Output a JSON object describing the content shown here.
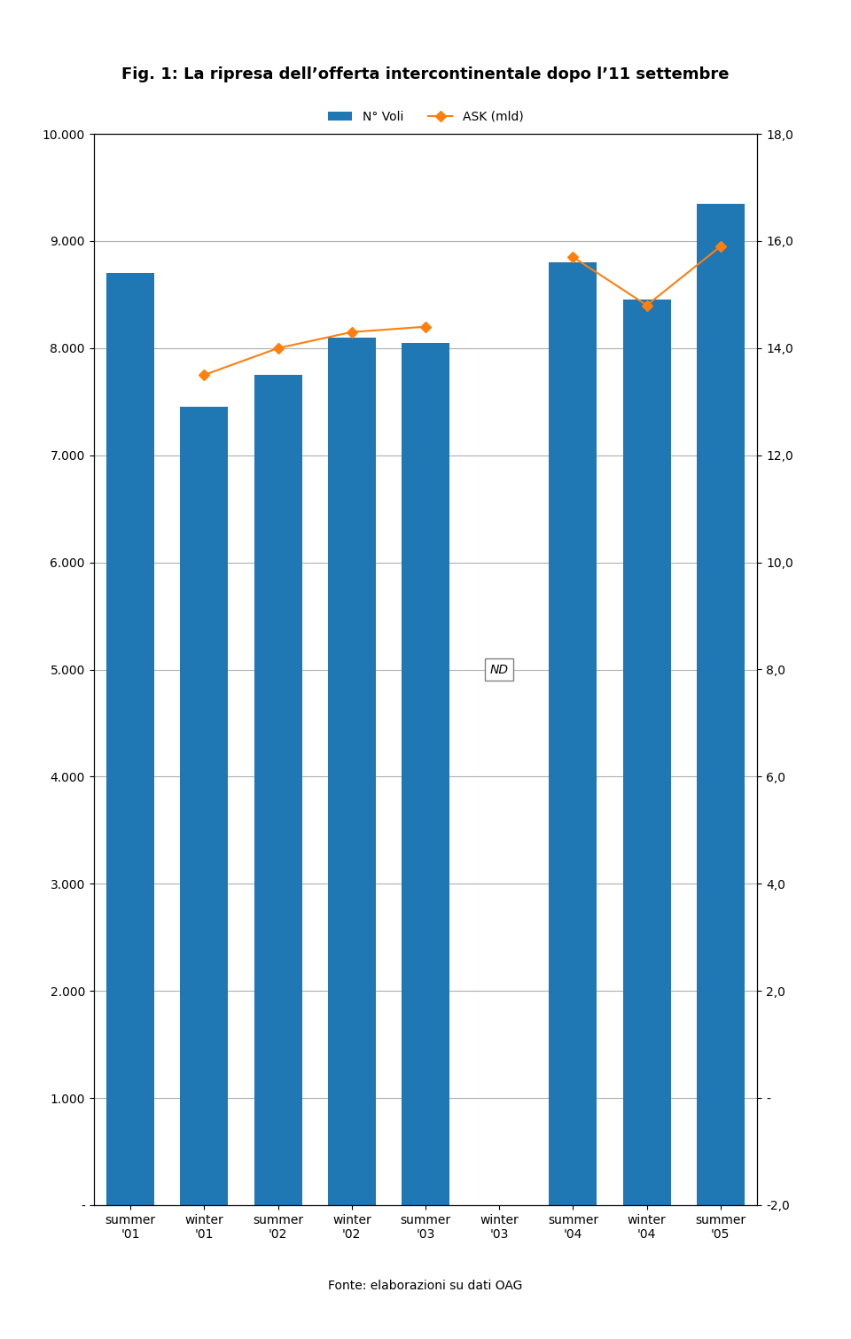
{
  "chart_data": {
    "type": "bar",
    "title": "Fig. 1: La ripresa dell’offerta intercontinentale dopo l’11 settembre",
    "categories": [
      "summer\n'01",
      "winter\n'01",
      "summer\n'02",
      "winter\n'02",
      "summer\n'03",
      "winter\n'03",
      "summer\n'04",
      "winter\n'04",
      "summer\n'05"
    ],
    "series": [
      {
        "name": "N° Voli",
        "type": "bar",
        "values": [
          8700,
          7450,
          7750,
          8100,
          8050,
          null,
          8800,
          8450,
          9350
        ]
      },
      {
        "name": "ASK (mld)",
        "type": "line",
        "axis": "y2",
        "marker": "D",
        "line_style": "solid",
        "values": [
          null,
          13.5,
          14.0,
          14.3,
          14.4,
          null,
          15.7,
          14.8,
          15.9
        ]
      }
    ],
    "ylim": [
      0,
      10000
    ],
    "yticks": [
      {
        "value": 0,
        "label": "-"
      },
      {
        "value": 1000,
        "label": "1.000"
      },
      {
        "value": 2000,
        "label": "2.000"
      },
      {
        "value": 3000,
        "label": "3.000"
      },
      {
        "value": 4000,
        "label": "4.000"
      },
      {
        "value": 5000,
        "label": "5.000"
      },
      {
        "value": 6000,
        "label": "6.000"
      },
      {
        "value": 7000,
        "label": "7.000"
      },
      {
        "value": 8000,
        "label": "8.000"
      },
      {
        "value": 9000,
        "label": "9.000"
      },
      {
        "value": 10000,
        "label": "10.000"
      }
    ],
    "y2lim": [
      -2,
      18
    ],
    "y2ticks": [
      {
        "value": -2,
        "label": "-2,0"
      },
      {
        "value": 0,
        "label": "-"
      },
      {
        "value": 2,
        "label": "2,0"
      },
      {
        "value": 4,
        "label": "4,0"
      },
      {
        "value": 6,
        "label": "6,0"
      },
      {
        "value": 8,
        "label": "8,0"
      },
      {
        "value": 10,
        "label": "10,0"
      },
      {
        "value": 12,
        "label": "12,0"
      },
      {
        "value": 14,
        "label": "14,0"
      },
      {
        "value": 16,
        "label": "16,0"
      },
      {
        "value": 18,
        "label": "18,0"
      }
    ],
    "grid": true,
    "legend": "upper center",
    "annotations": [
      {
        "text": "ND",
        "category": "winter\n'03"
      },
      {
        "text": "Fonte: elaborazioni su dati OAG"
      }
    ]
  }
}
